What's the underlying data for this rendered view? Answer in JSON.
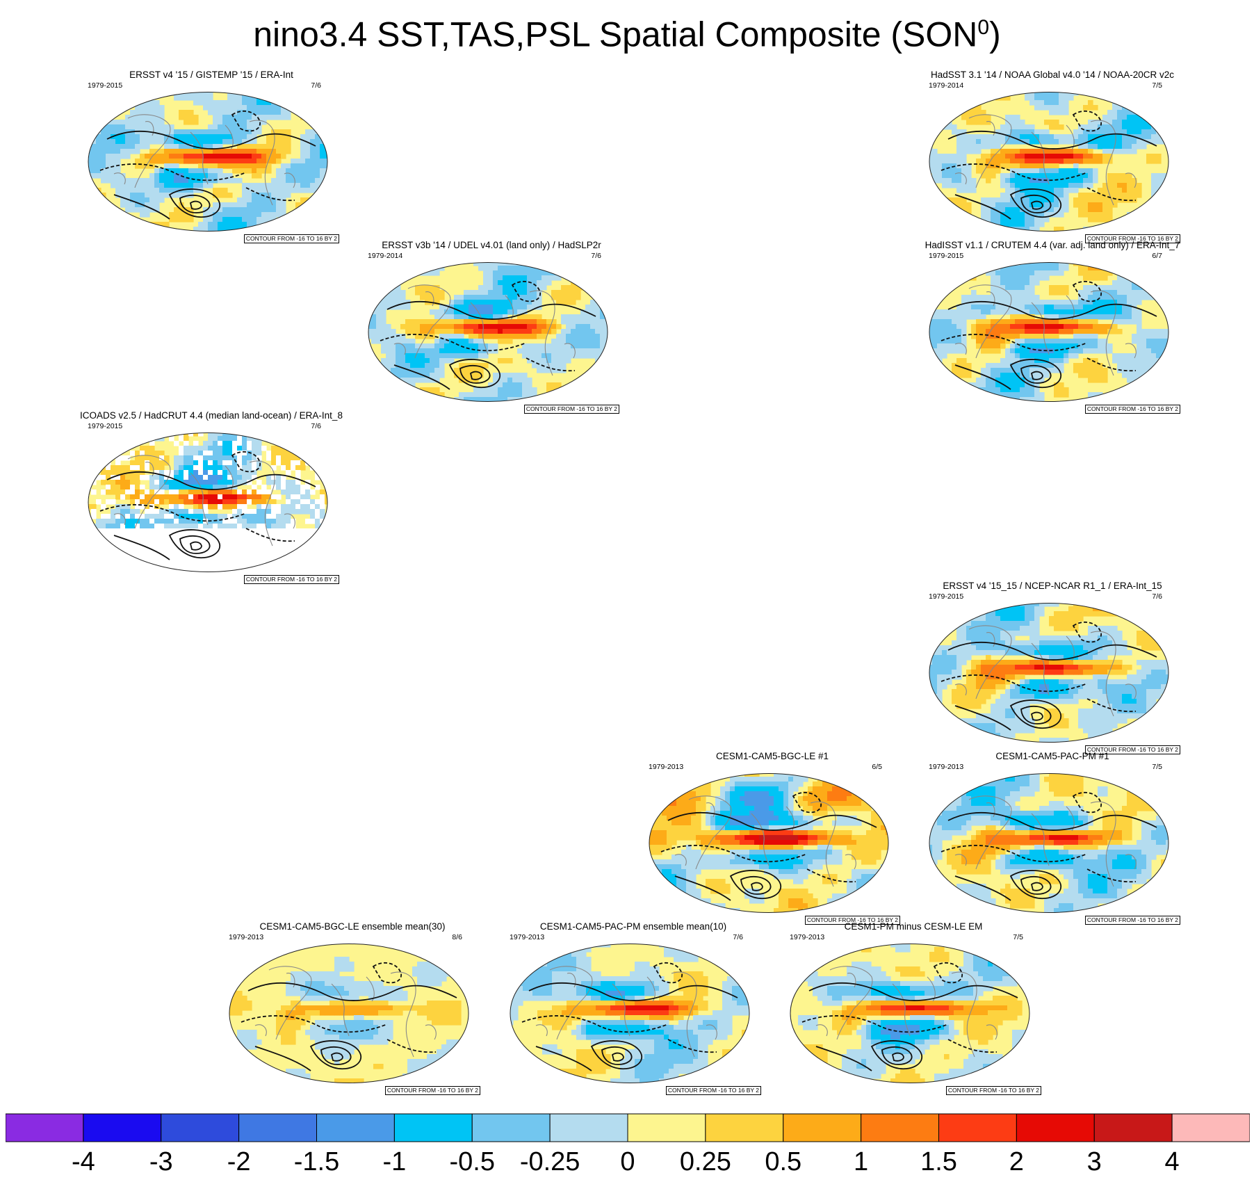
{
  "title": {
    "text": "nino3.4 SST,TAS,PSL Spatial Composite (SON",
    "superscript": "0",
    "close": ")"
  },
  "panels": [
    {
      "title": "ERSST v4 '15 / GISTEMP '15 / ERA-Int",
      "years": "1979-2015",
      "ratio": "7/6",
      "contour": "CONTOUR FROM -16 TO 16 BY 2",
      "variant": "obs"
    },
    {
      "title": "HadSST 3.1 '14 / NOAA Global v4.0 '14 / NOAA-20CR v2c",
      "years": "1979-2014",
      "ratio": "7/5",
      "contour": "CONTOUR FROM -16 TO 16 BY 2",
      "variant": "obs"
    },
    {
      "title": "ERSST v3b '14 / UDEL v4.01 (land only) / HadSLP2r",
      "years": "1979-2014",
      "ratio": "7/6",
      "contour": "CONTOUR FROM -16 TO 16 BY 2",
      "variant": "obs"
    },
    {
      "title": "HadISST v1.1 / CRUTEM 4.4 (var. adj. land only) / ERA-Int_7",
      "years": "1979-2015",
      "ratio": "6/7",
      "contour": "CONTOUR FROM -16 TO 16 BY 2",
      "variant": "obs"
    },
    {
      "title": "ICOADS v2.5 / HadCRUT 4.4 (median land-ocean) / ERA-Int_8",
      "years": "1979-2015",
      "ratio": "7/6",
      "contour": "CONTOUR FROM -16 TO 16 BY 2",
      "variant": "sparse"
    },
    {
      "title": "ERSST v4 '15_15 / NCEP-NCAR R1_1 / ERA-Int_15",
      "years": "1979-2015",
      "ratio": "7/6",
      "contour": "CONTOUR FROM -16 TO 16 BY 2",
      "variant": "obs"
    },
    {
      "title": "CESM1-CAM5-BGC-LE #1",
      "years": "1979-2013",
      "ratio": "6/5",
      "contour": "CONTOUR FROM -16 TO 16 BY 2",
      "variant": "strong"
    },
    {
      "title": "CESM1-CAM5-PAC-PM #1",
      "years": "1979-2013",
      "ratio": "7/5",
      "contour": "CONTOUR FROM -16 TO 16 BY 2",
      "variant": "obs"
    },
    {
      "title": "CESM1-CAM5-BGC-LE ensemble mean(30)",
      "years": "1979-2013",
      "ratio": "8/6",
      "contour": "CONTOUR FROM -16 TO 16 BY 2",
      "variant": "weak"
    },
    {
      "title": "CESM1-CAM5-PAC-PM ensemble mean(10)",
      "years": "1979-2013",
      "ratio": "7/6",
      "contour": "CONTOUR FROM -16 TO 16 BY 2",
      "variant": "model"
    },
    {
      "title": "CESM1-PM minus CESM-LE EM",
      "years": "1979-2013",
      "ratio": "7/5",
      "contour": "CONTOUR FROM -16 TO 16 BY 2",
      "variant": "model"
    }
  ],
  "chart_data": {
    "type": "heatmap",
    "title": "nino3.4 SST,TAS,PSL Spatial Composite (SON0)",
    "projection": "robinson",
    "filled_field": "SST / TAS anomaly",
    "contour_field": "PSL anomaly (solid positive, dashed negative)",
    "contour_levels": {
      "min": -16,
      "max": 16,
      "step": 2
    },
    "colorbar": {
      "labels": [
        "-4",
        "-3",
        "-2",
        "-1.5",
        "-1",
        "-0.5",
        "-0.25",
        "0",
        "0.25",
        "0.5",
        "1",
        "1.5",
        "2",
        "3",
        "4"
      ],
      "colors": [
        "#8a2be2",
        "#1a0bf0",
        "#2e4bdc",
        "#3f78e3",
        "#4a9ae8",
        "#00c4f5",
        "#72c6ef",
        "#b4dcef",
        "#fdf58f",
        "#fdd33f",
        "#fdab18",
        "#fd7c12",
        "#fd3c14",
        "#e60a05",
        "#c81818",
        "#fdb9b9"
      ],
      "orientation": "horizontal",
      "placement": "bottom"
    }
  }
}
